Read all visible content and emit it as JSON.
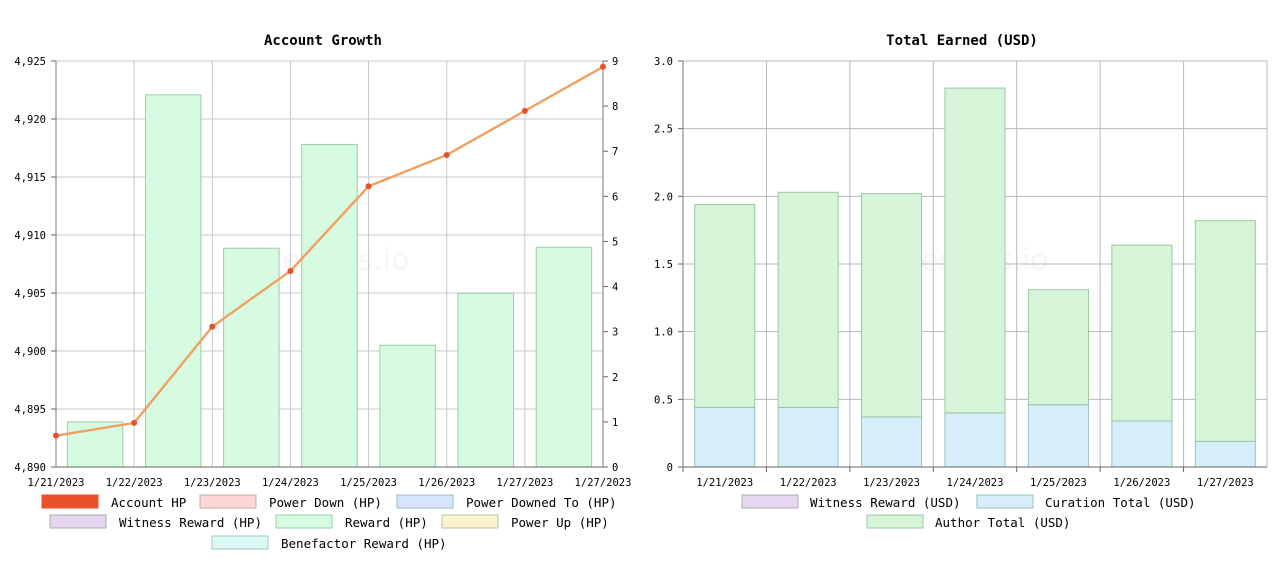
{
  "watermark": "hivestats.io",
  "chart_data": [
    {
      "type": "bar",
      "title": "Account Growth",
      "categories": [
        "1/21/2023",
        "1/22/2023",
        "1/23/2023",
        "1/24/2023",
        "1/25/2023",
        "1/26/2023",
        "1/27/2023"
      ],
      "y_left": {
        "min": 4890,
        "max": 4925,
        "ticks": [
          "4,890",
          "4,895",
          "4,900",
          "4,905",
          "4,910",
          "4,915",
          "4,920",
          "4,925"
        ]
      },
      "y_right": {
        "min": 0,
        "max": 9,
        "ticks": [
          "0",
          "1",
          "2",
          "3",
          "4",
          "5",
          "6",
          "7",
          "8",
          "9"
        ]
      },
      "grid": true,
      "legend_position": "bottom",
      "series": [
        {
          "name": "Account HP",
          "kind": "line",
          "axis": "left",
          "color": "#f0a060",
          "marker_color": "#e8512a",
          "x": [
            "1/21/2023",
            "1/22/2023",
            "1/23/2023",
            "1/24/2023",
            "1/25/2023",
            "1/26/2023",
            "1/27/2023",
            "1/28/2023"
          ],
          "values": [
            4892.7,
            4893.8,
            4902.1,
            4906.9,
            4914.2,
            4916.9,
            4920.7,
            4924.5
          ]
        },
        {
          "name": "Power Down (HP)",
          "kind": "bar",
          "axis": "right",
          "color": "#ffd6d6",
          "values": [
            0,
            0,
            0,
            0,
            0,
            0,
            0
          ]
        },
        {
          "name": "Power Downed To (HP)",
          "kind": "bar",
          "axis": "right",
          "color": "#d6e4ff",
          "values": [
            0,
            0,
            0,
            0,
            0,
            0,
            0
          ]
        },
        {
          "name": "Witness Reward (HP)",
          "kind": "bar",
          "axis": "right",
          "color": "#e6d6f0",
          "values": [
            0,
            0,
            0,
            0,
            0,
            0,
            0
          ]
        },
        {
          "name": "Reward (HP)",
          "kind": "bar",
          "axis": "right",
          "color": "#d6fbe0",
          "values": [
            1.0,
            8.25,
            4.85,
            7.15,
            2.7,
            3.85,
            4.87
          ]
        },
        {
          "name": "Power Up (HP)",
          "kind": "bar",
          "axis": "right",
          "color": "#fbf3d0",
          "values": [
            0,
            0,
            0,
            0,
            0,
            0,
            0
          ]
        },
        {
          "name": "Benefactor Reward (HP)",
          "kind": "bar",
          "axis": "right",
          "color": "#dcf8f4",
          "values": [
            0,
            0,
            0,
            0,
            0,
            0,
            0
          ]
        }
      ]
    },
    {
      "type": "bar",
      "stacked": true,
      "title": "Total Earned (USD)",
      "categories": [
        "1/21/2023",
        "1/22/2023",
        "1/23/2023",
        "1/24/2023",
        "1/25/2023",
        "1/26/2023",
        "1/27/2023"
      ],
      "y": {
        "min": 0,
        "max": 3.0,
        "ticks": [
          "0",
          "0.5",
          "1.0",
          "1.5",
          "2.0",
          "2.5",
          "3.0"
        ]
      },
      "grid": true,
      "legend_position": "bottom",
      "series": [
        {
          "name": "Witness Reward (USD)",
          "color": "#e6d6f0",
          "values": [
            0,
            0,
            0,
            0,
            0,
            0,
            0
          ]
        },
        {
          "name": "Curation Total (USD)",
          "color": "#d6eefa",
          "values": [
            0.44,
            0.44,
            0.37,
            0.4,
            0.46,
            0.34,
            0.19
          ]
        },
        {
          "name": "Author Total (USD)",
          "color": "#d6f4d8",
          "values": [
            1.5,
            1.59,
            1.65,
            2.4,
            0.85,
            1.3,
            1.63
          ]
        }
      ]
    }
  ]
}
